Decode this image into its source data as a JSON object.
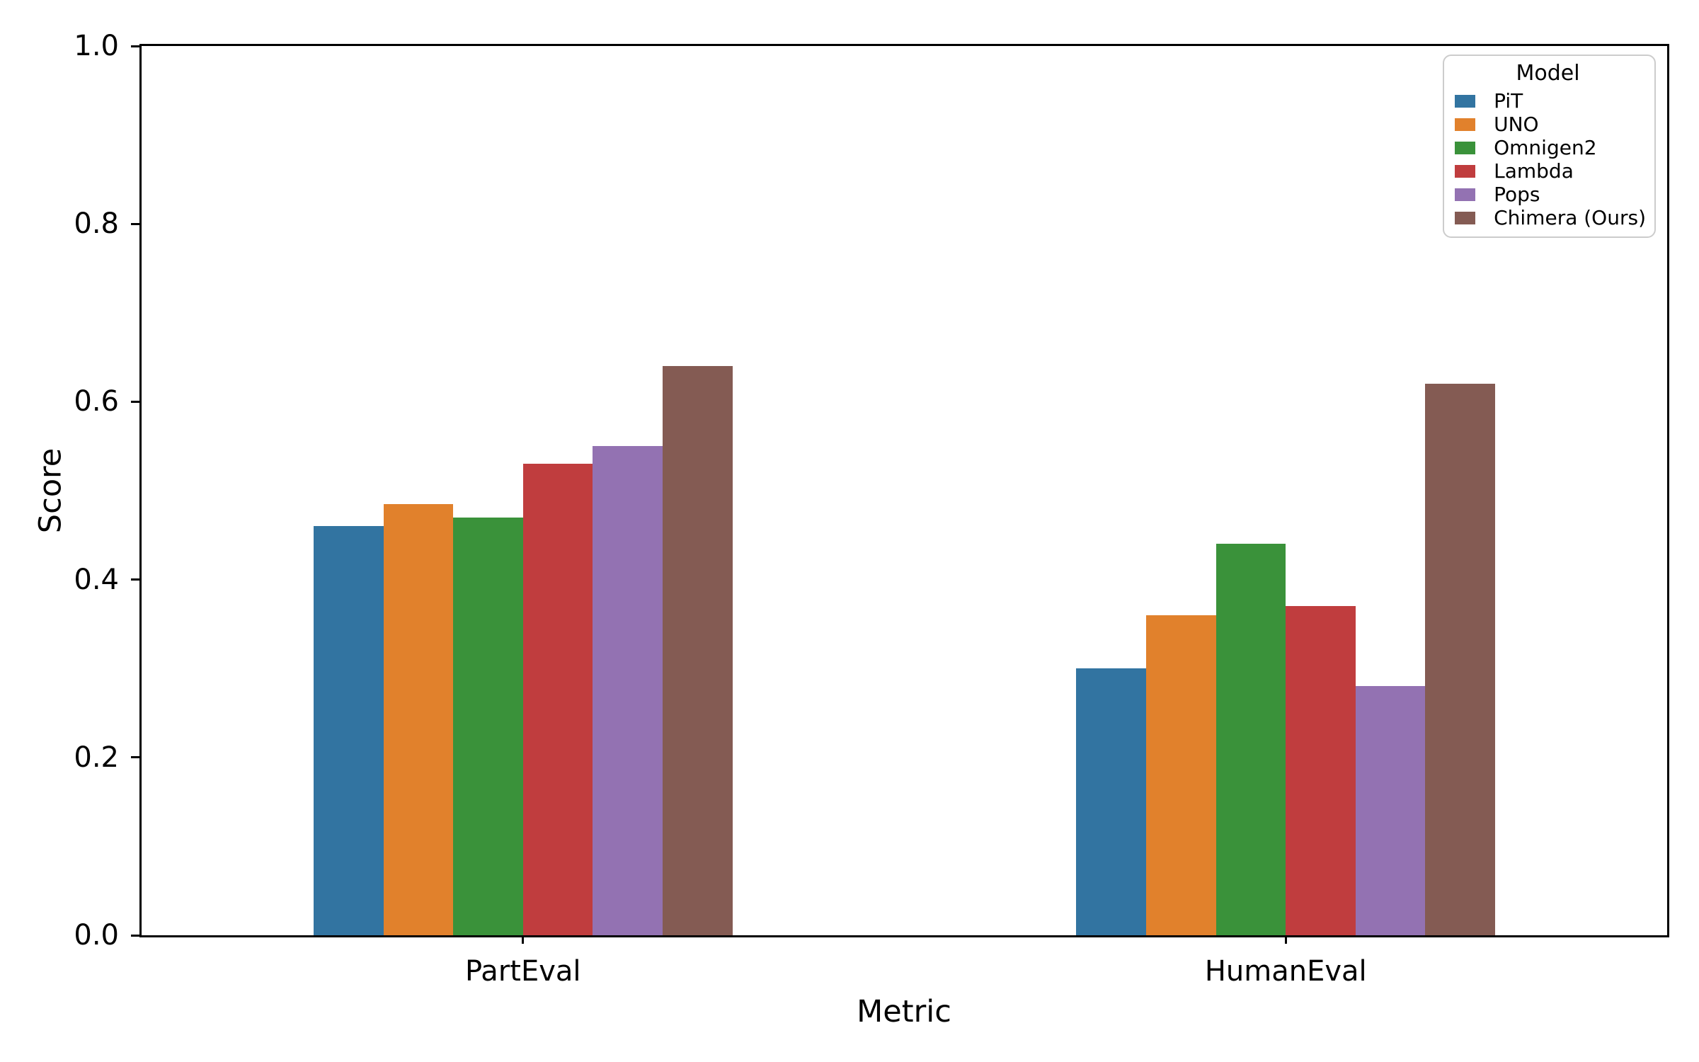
{
  "chart_data": {
    "type": "bar",
    "title": "",
    "xlabel": "Metric",
    "ylabel": "Score",
    "ylim": [
      0.0,
      1.0
    ],
    "yticks": [
      0.0,
      0.2,
      0.4,
      0.6,
      0.8,
      1.0
    ],
    "ytick_labels": [
      "0.0",
      "0.2",
      "0.4",
      "0.6",
      "0.8",
      "1.0"
    ],
    "categories": [
      "PartEval",
      "HumanEval"
    ],
    "grid": false,
    "legend": {
      "title": "Model",
      "position": "upper right",
      "entries": [
        "PiT",
        "UNO",
        "Omnigen2",
        "Lambda",
        "Pops",
        "Chimera (Ours)"
      ]
    },
    "colors": {
      "PiT": "#3274A1",
      "UNO": "#E1812C",
      "Omnigen2": "#3A923A",
      "Lambda": "#C03D3E",
      "Pops": "#9372B2",
      "Chimera (Ours)": "#845B53",
      "axis": "#000000",
      "legend_border": "#CCCCCC"
    },
    "series": [
      {
        "name": "PiT",
        "color": "#3274A1",
        "values": [
          0.46,
          0.3
        ]
      },
      {
        "name": "UNO",
        "color": "#E1812C",
        "values": [
          0.485,
          0.36
        ]
      },
      {
        "name": "Omnigen2",
        "color": "#3A923A",
        "values": [
          0.47,
          0.44
        ]
      },
      {
        "name": "Lambda",
        "color": "#C03D3E",
        "values": [
          0.53,
          0.37
        ]
      },
      {
        "name": "Pops",
        "color": "#9372B2",
        "values": [
          0.55,
          0.28
        ]
      },
      {
        "name": "Chimera (Ours)",
        "color": "#845B53",
        "values": [
          0.64,
          0.62
        ]
      }
    ]
  }
}
